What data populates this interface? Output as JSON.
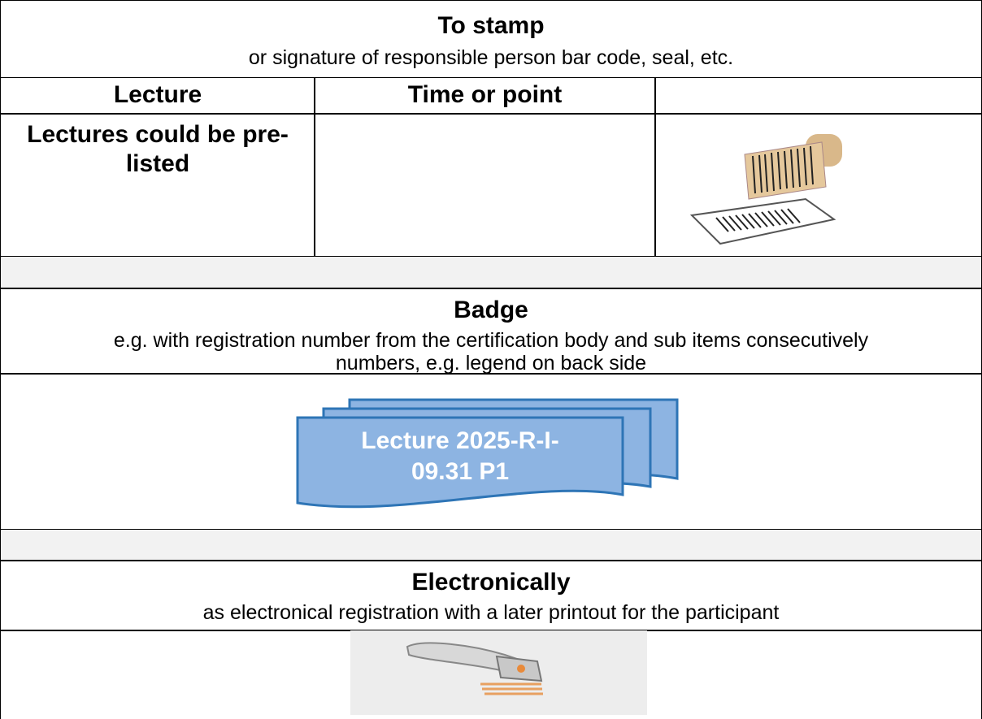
{
  "stamp": {
    "title": "To stamp",
    "subtitle": "or signature of responsible person  bar code, seal, etc."
  },
  "table": {
    "headers": [
      "Lecture",
      "Time or point"
    ],
    "rows": [
      [
        "Lectures could be pre-listed",
        ""
      ]
    ]
  },
  "badge": {
    "title": "Badge",
    "description": "e.g. with registration number from the certification body and sub items consecutively numbers, e.g. legend on back side",
    "label_lines": [
      "Lecture 2025-R-I-",
      "09.31 P1"
    ]
  },
  "electronic": {
    "title": "Electronically",
    "description": "as electronical registration with a later printout for the participant"
  }
}
